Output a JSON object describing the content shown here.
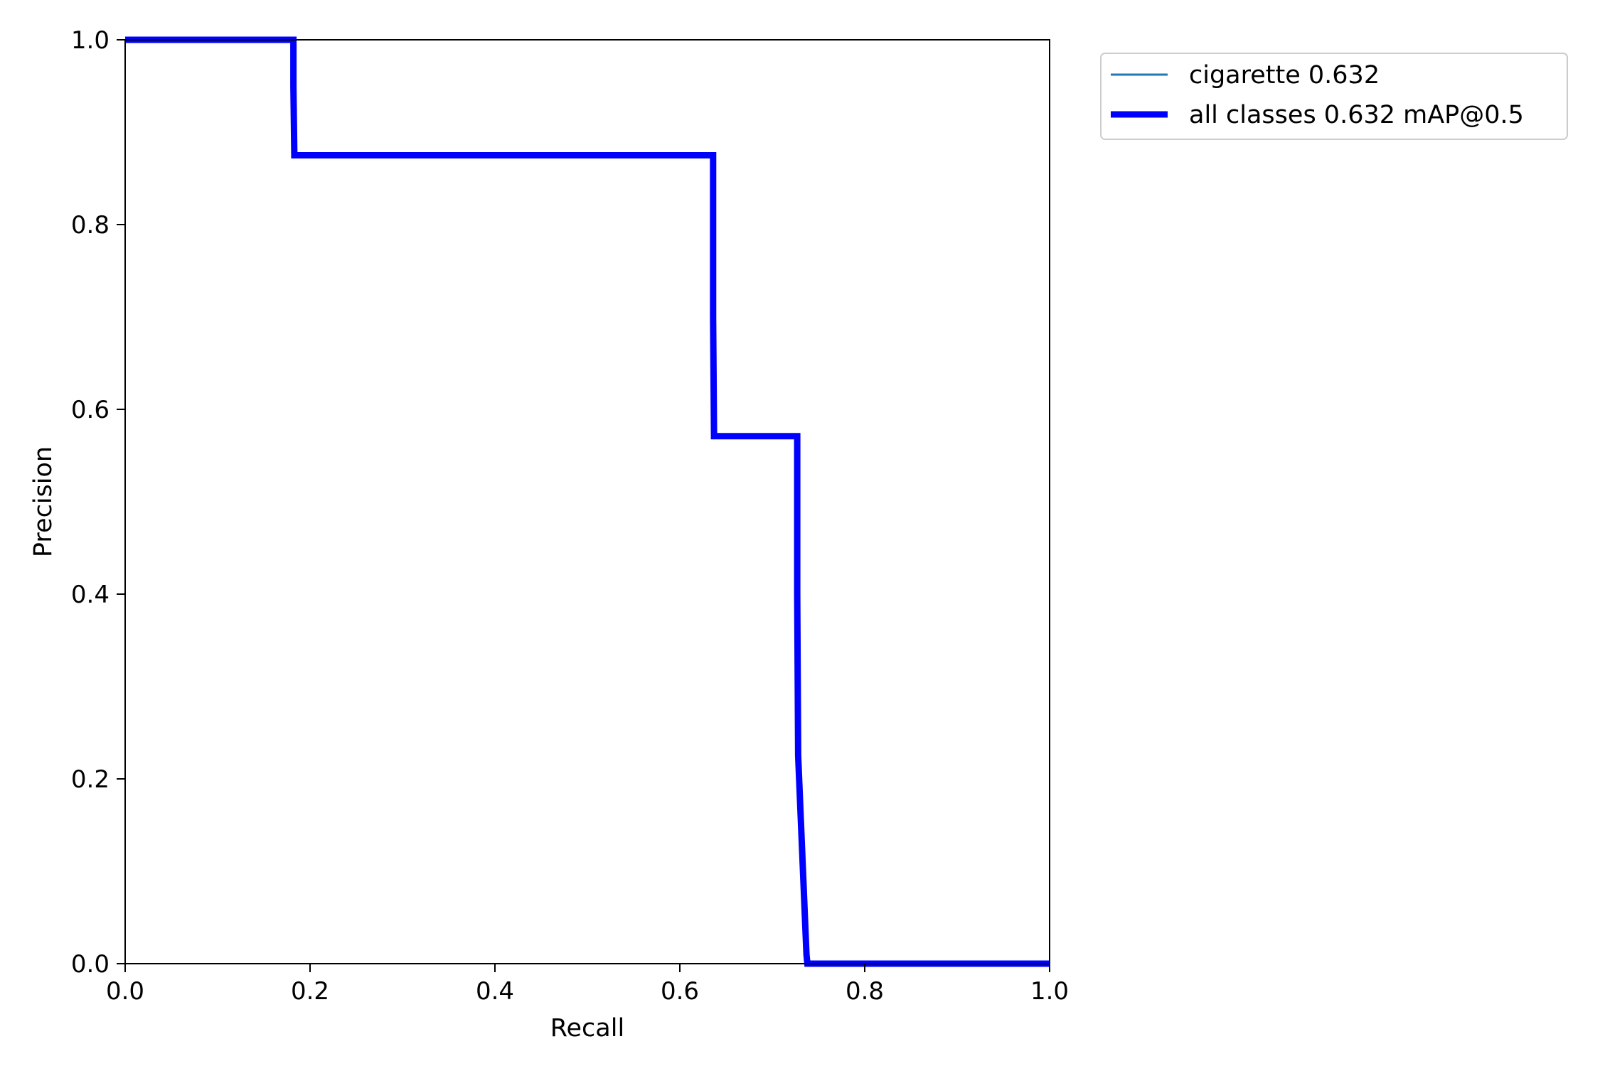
{
  "chart_data": {
    "type": "line",
    "xlabel": "Recall",
    "ylabel": "Precision",
    "xlim": [
      0.0,
      1.0
    ],
    "ylim": [
      0.0,
      1.0
    ],
    "xticks": [
      "0.0",
      "0.2",
      "0.4",
      "0.6",
      "0.8",
      "1.0"
    ],
    "yticks": [
      "0.0",
      "0.2",
      "0.4",
      "0.6",
      "0.8",
      "1.0"
    ],
    "grid": false,
    "legend_position": "outside-top-right",
    "series": [
      {
        "name": "cigarette 0.632",
        "color": "#1f77b4",
        "x": [
          0.0,
          0.182,
          0.182,
          0.183,
          0.636,
          0.636,
          0.637,
          0.727,
          0.727,
          0.728,
          0.737,
          0.738,
          1.0
        ],
        "y": [
          1.0,
          1.0,
          0.95,
          0.875,
          0.875,
          0.7,
          0.571,
          0.571,
          0.4,
          0.225,
          0.01,
          0.0,
          0.0
        ]
      },
      {
        "name": "all classes 0.632 mAP@0.5",
        "color": "#0000ff",
        "x": [
          0.0,
          0.182,
          0.182,
          0.183,
          0.636,
          0.636,
          0.637,
          0.727,
          0.727,
          0.728,
          0.737,
          0.738,
          1.0
        ],
        "y": [
          1.0,
          1.0,
          0.95,
          0.875,
          0.875,
          0.7,
          0.571,
          0.571,
          0.4,
          0.225,
          0.01,
          0.0,
          0.0
        ]
      }
    ]
  }
}
